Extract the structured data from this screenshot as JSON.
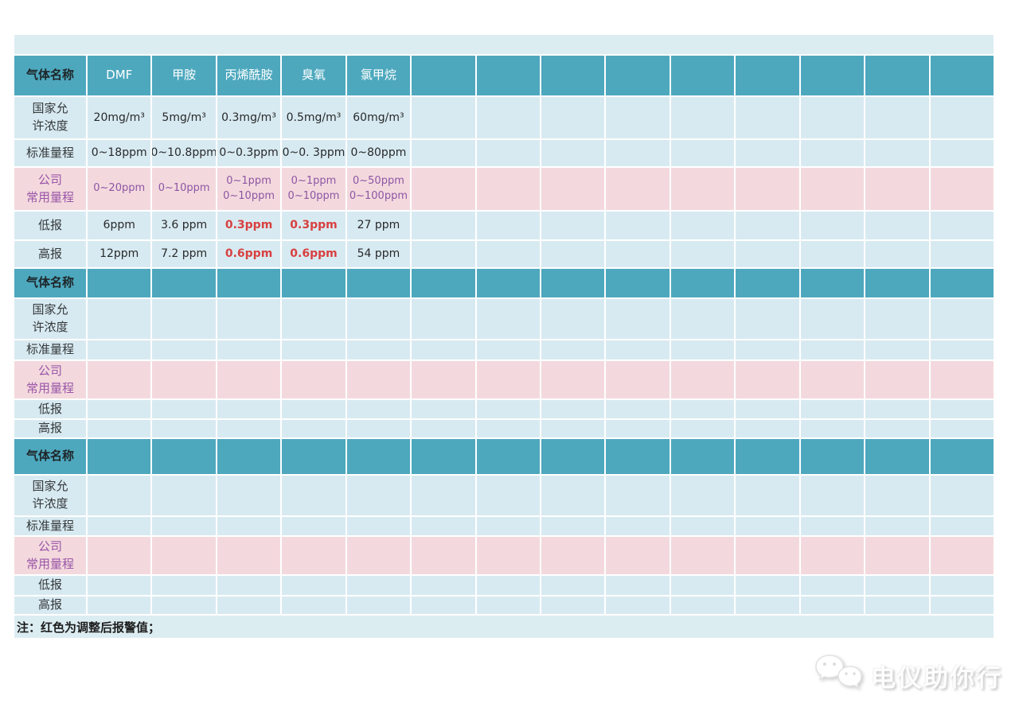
{
  "note": "注：红色为调整后报警值；",
  "watermark": {
    "text": "电仪助你行",
    "icon": "wechat-chat-bubbles-icon"
  },
  "colors": {
    "header_teal": "#4da8be",
    "cell_light_blue": "#d8eaf1",
    "cell_pink": "#f3d9dd",
    "purple_text": "#8e55a5",
    "red_text": "#d84040",
    "grid_line": "#ffffff"
  },
  "table": {
    "sections": [
      {
        "header": {
          "label": "气体名称",
          "gases": [
            "DMF",
            "甲胺",
            "丙烯酰胺",
            "臭氧",
            "氯甲烷"
          ]
        },
        "rows": [
          {
            "key": "national-limit",
            "label": "国家允\n许浓度",
            "style": "light",
            "cells": [
              "20mg/m³",
              "5mg/m³",
              "0.3mg/m³",
              "0.5mg/m³",
              "60mg/m³"
            ]
          },
          {
            "key": "standard-range",
            "label": "标准量程",
            "style": "light",
            "cells": [
              "0~18ppm",
              "0~10.8ppm",
              "0~0.3ppm",
              "0~0. 3ppm",
              "0~80ppm"
            ]
          },
          {
            "key": "company-range",
            "label": "公司\n常用量程",
            "style": "pink",
            "cells": [
              "0~20ppm",
              "0~10ppm",
              "0~1ppm\n0~10ppm",
              "0~1ppm\n0~10ppm",
              "0~50ppm\n0~100ppm"
            ]
          },
          {
            "key": "low-alarm",
            "label": "低报",
            "style": "light",
            "cells": [
              "6ppm",
              "3.6 ppm",
              {
                "text": "0.3ppm",
                "red": true
              },
              {
                "text": "0.3ppm",
                "red": true
              },
              "27 ppm"
            ]
          },
          {
            "key": "high-alarm",
            "label": "高报",
            "style": "light",
            "cells": [
              "12ppm",
              "7.2 ppm",
              {
                "text": "0.6ppm",
                "red": true
              },
              {
                "text": "0.6ppm",
                "red": true
              },
              "54 ppm"
            ]
          }
        ]
      },
      {
        "header": {
          "label": "气体名称",
          "gases": []
        },
        "rows": [
          {
            "key": "national-limit",
            "label": "国家允\n许浓度",
            "style": "light",
            "cells": []
          },
          {
            "key": "standard-range",
            "label": "标准量程",
            "style": "light",
            "cells": []
          },
          {
            "key": "company-range",
            "label": "公司\n常用量程",
            "style": "pink",
            "cells": []
          },
          {
            "key": "low-alarm",
            "label": "低报",
            "style": "light",
            "cells": []
          },
          {
            "key": "high-alarm",
            "label": "高报",
            "style": "light",
            "cells": []
          }
        ]
      },
      {
        "header": {
          "label": "气体名称",
          "gases": []
        },
        "rows": [
          {
            "key": "national-limit",
            "label": "国家允\n许浓度",
            "style": "light",
            "cells": []
          },
          {
            "key": "standard-range",
            "label": "标准量程",
            "style": "light",
            "cells": []
          },
          {
            "key": "company-range",
            "label": "公司\n常用量程",
            "style": "pink",
            "cells": []
          },
          {
            "key": "low-alarm",
            "label": "低报",
            "style": "light",
            "cells": []
          },
          {
            "key": "high-alarm",
            "label": "高报",
            "style": "light",
            "cells": []
          }
        ]
      }
    ]
  }
}
